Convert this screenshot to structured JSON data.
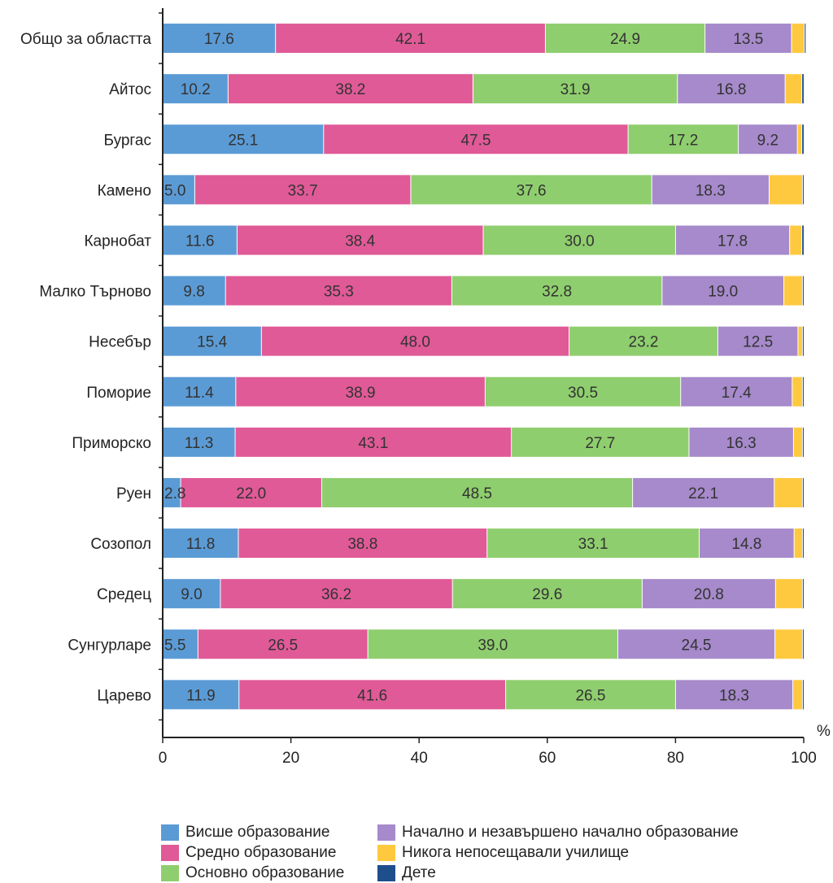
{
  "chart_data": {
    "type": "bar",
    "orientation": "horizontal",
    "stacked": true,
    "title": "",
    "xlabel": "",
    "ylabel": "",
    "unit": "%",
    "xlim": [
      0,
      100
    ],
    "xticks": [
      "0",
      "20",
      "40",
      "60",
      "80",
      "100"
    ],
    "grid": false,
    "legend_position": "bottom",
    "categories": [
      "Общо за областта",
      "Айтос",
      "Бургас",
      "Камено",
      "Карнобат",
      "Малко Търново",
      "Несебър",
      "Поморие",
      "Приморско",
      "Руен",
      "Созопол",
      "Средец",
      "Сунгурларе",
      "Царево"
    ],
    "series": [
      {
        "name": "Висше образование",
        "color": "#5b9bd5",
        "values": [
          17.6,
          10.2,
          25.1,
          5.0,
          11.6,
          9.8,
          15.4,
          11.4,
          11.3,
          2.8,
          11.8,
          9.0,
          5.5,
          11.9
        ],
        "labels": [
          "17.6",
          "10.2",
          "25.1",
          "5.0",
          "11.6",
          "9.8",
          "15.4",
          "11.4",
          "11.3",
          "2.8",
          "11.8",
          "9.0",
          "5.5",
          "11.9"
        ]
      },
      {
        "name": "Средно образование",
        "color": "#e05a97",
        "values": [
          42.1,
          38.2,
          47.5,
          33.7,
          38.4,
          35.3,
          48.0,
          38.9,
          43.1,
          22.0,
          38.8,
          36.2,
          26.5,
          41.6
        ],
        "labels": [
          "42.1",
          "38.2",
          "47.5",
          "33.7",
          "38.4",
          "35.3",
          "48.0",
          "38.9",
          "43.1",
          "22.0",
          "38.8",
          "36.2",
          "26.5",
          "41.6"
        ]
      },
      {
        "name": "Основно образование",
        "color": "#8fce6e",
        "values": [
          24.9,
          31.9,
          17.2,
          37.6,
          30.0,
          32.8,
          23.2,
          30.5,
          27.7,
          48.5,
          33.1,
          29.6,
          39.0,
          26.5
        ],
        "labels": [
          "24.9",
          "31.9",
          "17.2",
          "37.6",
          "30.0",
          "32.8",
          "23.2",
          "30.5",
          "27.7",
          "48.5",
          "33.1",
          "29.6",
          "39.0",
          "26.5"
        ]
      },
      {
        "name": "Начално и незавършено начално образование",
        "color": "#a68acb",
        "values": [
          13.5,
          16.8,
          9.2,
          18.3,
          17.8,
          19.0,
          12.5,
          17.4,
          16.3,
          22.1,
          14.8,
          20.8,
          24.5,
          18.3
        ],
        "labels": [
          "13.5",
          "16.8",
          "9.2",
          "18.3",
          "17.8",
          "19.0",
          "12.5",
          "17.4",
          "16.3",
          "22.1",
          "14.8",
          "20.8",
          "24.5",
          "18.3"
        ]
      },
      {
        "name": "Никога непосещавали училище",
        "color": "#ffc93f",
        "values": [
          2.0,
          2.6,
          0.7,
          5.2,
          1.9,
          2.9,
          0.7,
          1.6,
          1.4,
          4.4,
          1.3,
          4.2,
          4.3,
          1.5
        ],
        "labels": []
      },
      {
        "name": "Дете",
        "color": "#1f4e8c",
        "values": [
          0.2,
          0.3,
          0.3,
          0.2,
          0.3,
          0.2,
          0.2,
          0.2,
          0.2,
          0.2,
          0.2,
          0.2,
          0.2,
          0.2
        ],
        "labels": []
      }
    ]
  }
}
